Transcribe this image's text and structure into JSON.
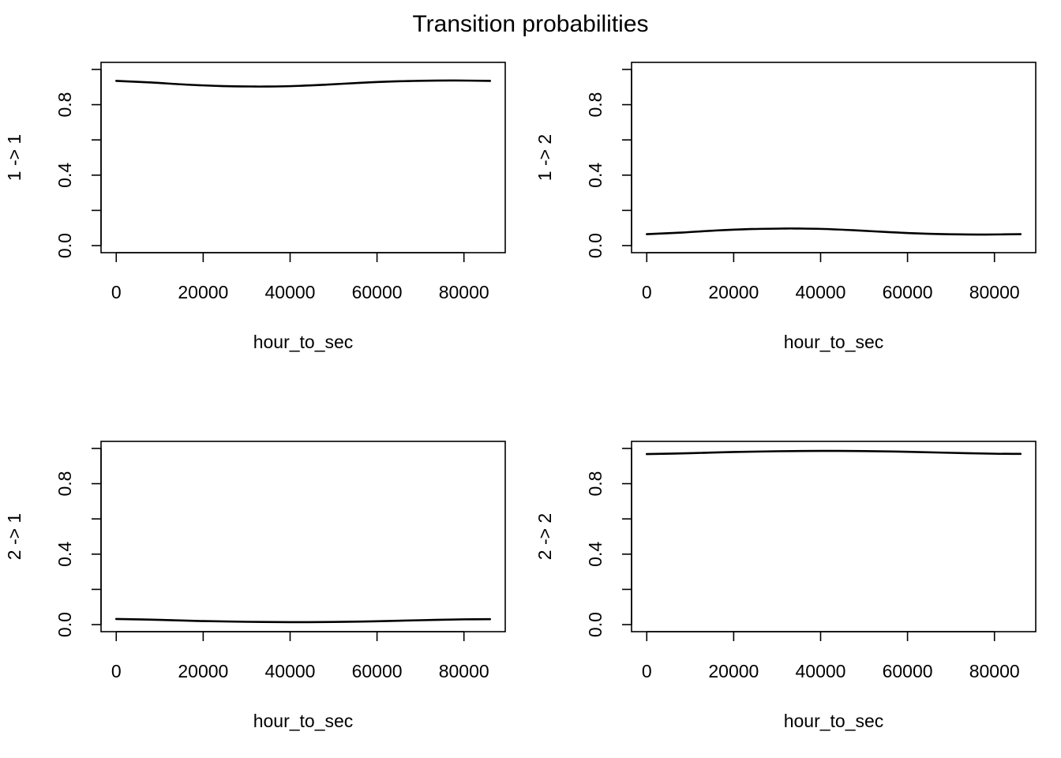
{
  "title": "Transition probabilities",
  "chart_data": [
    {
      "type": "line",
      "xlabel": "hour_to_sec",
      "ylabel": "1 -> 1",
      "xlim": [
        -3500,
        89500
      ],
      "ylim": [
        -0.04,
        1.04
      ],
      "x_ticks": [
        0,
        20000,
        40000,
        60000,
        80000
      ],
      "x_tick_labels": [
        "0",
        "20000",
        "40000",
        "60000",
        "80000"
      ],
      "y_ticks": [
        0.0,
        0.2,
        0.4,
        0.6,
        0.8,
        1.0
      ],
      "y_tick_labels": [
        "0.0",
        "",
        "0.4",
        "",
        "0.8",
        ""
      ],
      "grid": false,
      "x": [
        0,
        8000,
        16000,
        24000,
        32000,
        34000,
        40000,
        48000,
        56000,
        64000,
        72000,
        78000,
        86000
      ],
      "y": [
        0.935,
        0.926,
        0.914,
        0.906,
        0.903,
        0.903,
        0.905,
        0.913,
        0.924,
        0.932,
        0.936,
        0.937,
        0.935
      ]
    },
    {
      "type": "line",
      "xlabel": "hour_to_sec",
      "ylabel": "1 -> 2",
      "xlim": [
        -3500,
        89500
      ],
      "ylim": [
        -0.04,
        1.04
      ],
      "x_ticks": [
        0,
        20000,
        40000,
        60000,
        80000
      ],
      "x_tick_labels": [
        "0",
        "20000",
        "40000",
        "60000",
        "80000"
      ],
      "y_ticks": [
        0.0,
        0.2,
        0.4,
        0.6,
        0.8,
        1.0
      ],
      "y_tick_labels": [
        "0.0",
        "",
        "0.4",
        "",
        "0.8",
        ""
      ],
      "grid": false,
      "x": [
        0,
        8000,
        16000,
        24000,
        32000,
        34000,
        40000,
        48000,
        56000,
        64000,
        72000,
        78000,
        86000
      ],
      "y": [
        0.065,
        0.074,
        0.086,
        0.094,
        0.097,
        0.097,
        0.095,
        0.087,
        0.076,
        0.068,
        0.064,
        0.063,
        0.065
      ]
    },
    {
      "type": "line",
      "xlabel": "hour_to_sec",
      "ylabel": "2 -> 1",
      "xlim": [
        -3500,
        89500
      ],
      "ylim": [
        -0.04,
        1.04
      ],
      "x_ticks": [
        0,
        20000,
        40000,
        60000,
        80000
      ],
      "x_tick_labels": [
        "0",
        "20000",
        "40000",
        "60000",
        "80000"
      ],
      "y_ticks": [
        0.0,
        0.2,
        0.4,
        0.6,
        0.8,
        1.0
      ],
      "y_tick_labels": [
        "0.0",
        "",
        "0.4",
        "",
        "0.8",
        ""
      ],
      "grid": false,
      "x": [
        0,
        10000,
        20000,
        30000,
        40000,
        44000,
        50000,
        60000,
        70000,
        80000,
        86000
      ],
      "y": [
        0.032,
        0.027,
        0.02,
        0.016,
        0.014,
        0.014,
        0.015,
        0.019,
        0.025,
        0.03,
        0.031
      ]
    },
    {
      "type": "line",
      "xlabel": "hour_to_sec",
      "ylabel": "2 -> 2",
      "xlim": [
        -3500,
        89500
      ],
      "ylim": [
        -0.04,
        1.04
      ],
      "x_ticks": [
        0,
        20000,
        40000,
        60000,
        80000
      ],
      "x_tick_labels": [
        "0",
        "20000",
        "40000",
        "60000",
        "80000"
      ],
      "y_ticks": [
        0.0,
        0.2,
        0.4,
        0.6,
        0.8,
        1.0
      ],
      "y_tick_labels": [
        "0.0",
        "",
        "0.4",
        "",
        "0.8",
        ""
      ],
      "grid": false,
      "x": [
        0,
        10000,
        20000,
        30000,
        40000,
        44000,
        50000,
        60000,
        70000,
        80000,
        86000
      ],
      "y": [
        0.968,
        0.973,
        0.98,
        0.984,
        0.986,
        0.986,
        0.985,
        0.981,
        0.975,
        0.97,
        0.969
      ]
    }
  ]
}
